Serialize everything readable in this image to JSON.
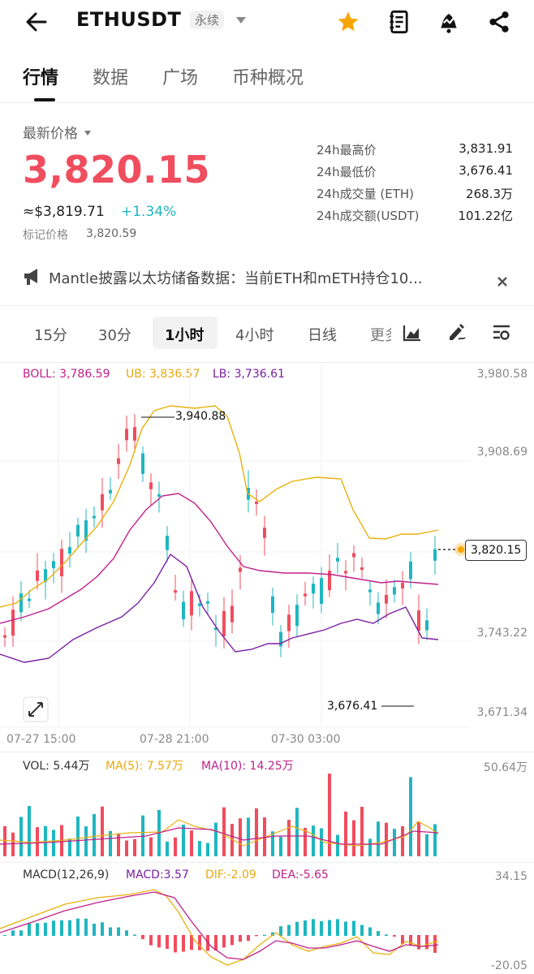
{
  "header": {
    "symbol": "ETHUSDT",
    "contract_type": "永续",
    "icons": [
      "back-arrow-icon",
      "dropdown-caret-icon",
      "star-icon",
      "notebook-icon",
      "alert-bell-icon",
      "share-icon"
    ],
    "star_color": "#f7a600"
  },
  "tabs": [
    {
      "label": "行情",
      "active": true
    },
    {
      "label": "数据",
      "active": false
    },
    {
      "label": "广场",
      "active": false
    },
    {
      "label": "币种概况",
      "active": false
    }
  ],
  "price": {
    "latest_label": "最新价格",
    "last": "3,820.15",
    "usd_equiv": "≈$3,819.71",
    "change": "+1.34%",
    "mark_label": "标记价格",
    "mark_value": "3,820.59",
    "up_color": "#1fb6c0",
    "down_color": "#f04d5e"
  },
  "stats": [
    {
      "label": "24h最高价",
      "value": "3,831.91"
    },
    {
      "label": "24h最低价",
      "value": "3,676.41"
    },
    {
      "label": "24h成交量 (ETH)",
      "value": "268.3万"
    },
    {
      "label": "24h成交额(USDT)",
      "value": "101.22亿"
    }
  ],
  "news": {
    "text": "Mantle披露以太坊储备数据：当前ETH和mETH持仓10...",
    "icons": [
      "megaphone-icon",
      "close-icon"
    ]
  },
  "timeframes": {
    "items": [
      "15分",
      "30分",
      "1小时",
      "4小时",
      "日线",
      "更多"
    ],
    "active": "1小时",
    "tool_icons": [
      "chart-type-icon",
      "draw-tool-icon",
      "indicator-settings-icon"
    ]
  },
  "main_chart": {
    "boll": "BOLL: 3,786.59",
    "ub": "UB: 3,836.57",
    "lb": "LB: 3,736.61",
    "y_labels": [
      "3,980.58",
      "3,908.69",
      "3,743.22",
      "3,671.34"
    ],
    "high_marker": "3,940.88",
    "low_marker": "3,676.41",
    "current_price": "3,820.15",
    "x_labels": [
      "07-27 15:00",
      "07-28 21:00",
      "07-30 03:00"
    ],
    "boll_color": "#c0208a",
    "ub_color": "#e8b10f",
    "lb_color": "#7a1fa2"
  },
  "volume": {
    "vol": "VOL: 5.44万",
    "ma5": "MA(5): 7.57万",
    "ma10": "MA(10): 14.25万",
    "y_top": "50.64万"
  },
  "macd": {
    "title": "MACD(12,26,9)",
    "macd": "MACD:3.57",
    "dif": "DIF:-2.09",
    "dea": "DEA:-5.65",
    "y_top": "34.15",
    "y_bottom": "-20.05"
  }
}
